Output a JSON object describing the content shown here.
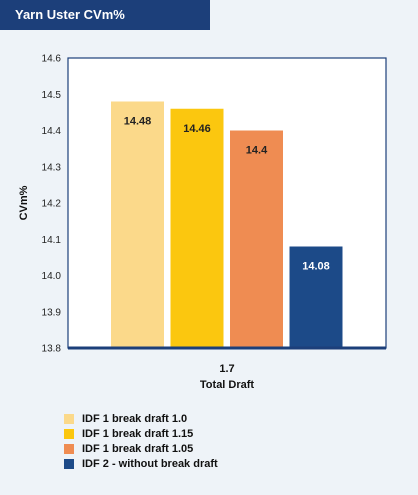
{
  "chart_data": {
    "type": "bar",
    "title": "Yarn Uster CVm%",
    "ylabel": "CVm%",
    "xlabel": "Total Draft",
    "categories": [
      "1.7"
    ],
    "ylim": [
      13.8,
      14.6
    ],
    "yticks": [
      "14.6",
      "14.5",
      "14.4",
      "14.3",
      "14.2",
      "14.1",
      "14.0",
      "13.9",
      "13.8"
    ],
    "grid": false,
    "legend_position": "bottom-left",
    "series": [
      {
        "name": "IDF 1 break draft 1.0",
        "values": [
          14.48
        ],
        "label": "14.48",
        "color": "#fbd98a",
        "label_color": "#222222"
      },
      {
        "name": "IDF 1 break draft 1.15",
        "values": [
          14.46
        ],
        "label": "14.46",
        "color": "#fbc70f",
        "label_color": "#222222"
      },
      {
        "name": "IDF 1 break draft 1.05",
        "values": [
          14.4
        ],
        "label": "14.4",
        "color": "#ef8c52",
        "label_color": "#222222"
      },
      {
        "name": "IDF 2 - without break draft",
        "values": [
          14.08
        ],
        "label": "14.08",
        "color": "#1c4a88",
        "label_color": "#ffffff"
      }
    ]
  },
  "colors": {
    "title_band": "#1c3f7a",
    "plot_border": "#1c3f7a",
    "background": "#eef3f8"
  }
}
